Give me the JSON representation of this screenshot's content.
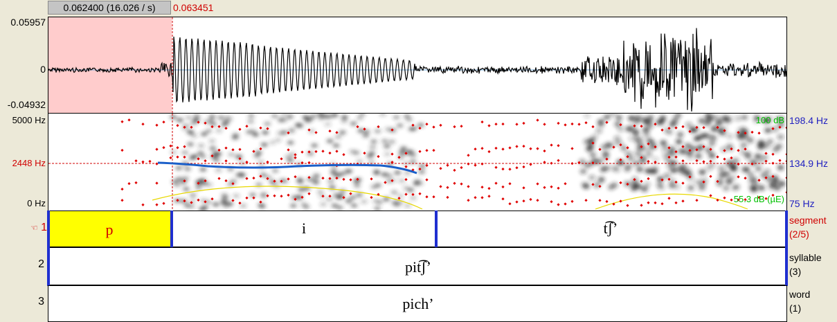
{
  "selection": {
    "duration": "0.062400 (16.026 / s)"
  },
  "cursor": {
    "time": "0.063451"
  },
  "waveform": {
    "max_label": "0.05957",
    "zero_label": "0",
    "min_label": "-0.04932"
  },
  "spectrogram": {
    "top_label": "5000 Hz",
    "cursor_label": "2448 Hz",
    "bottom_label": "0 Hz",
    "intensity_top": "100 dB",
    "intensity_bottom": "55.3 dB (µE)",
    "pitch_top": "198.4 Hz",
    "pitch_mid": "134.9 Hz",
    "pitch_bottom": "75 Hz"
  },
  "tiers": [
    {
      "number": "1",
      "name": "segment",
      "count": "(2/5)",
      "intervals": [
        "p",
        "i",
        "t͡ʃ’"
      ]
    },
    {
      "number": "2",
      "name": "syllable",
      "count": "(3)",
      "intervals": [
        "pit͡ʃ’"
      ]
    },
    {
      "number": "3",
      "name": "word",
      "count": "(1)",
      "intervals": [
        "pich’"
      ]
    }
  ],
  "colors": {
    "selection_fill": "#ffcccc",
    "cursor": "#d00000",
    "pitch": "#1a5fc9",
    "formant": "#e00000",
    "intensity_label": "#00c000",
    "pitch_label": "#2020c0",
    "selected_interval": "#ffff00"
  },
  "icons": {
    "active_tier": "pointing-hand-icon"
  }
}
